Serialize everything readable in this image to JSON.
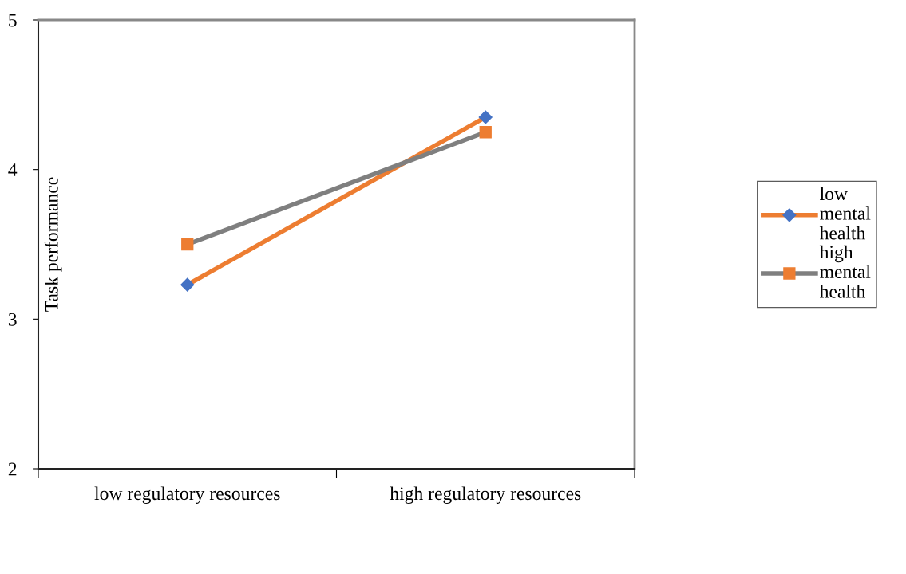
{
  "chart_data": {
    "type": "line",
    "ylabel": "Task performance",
    "categories": [
      "low regulatory resources",
      "high regulatory resources"
    ],
    "series": [
      {
        "name": "low mental health",
        "color": "#ed7d31",
        "colors": [
          "#4472c4",
          "#4472c4"
        ],
        "marker": "diamond",
        "values": [
          3.23,
          4.35
        ]
      },
      {
        "name": "high mental health",
        "color": "#7f7f7f",
        "colors": [
          "#ed7d31",
          "#ed7d31"
        ],
        "marker": "square",
        "values": [
          3.5,
          4.25
        ]
      }
    ],
    "ylim": [
      2,
      5
    ],
    "yticks": [
      2,
      3,
      4,
      5
    ],
    "grid": false,
    "legend": "right",
    "line_style": "solid"
  }
}
